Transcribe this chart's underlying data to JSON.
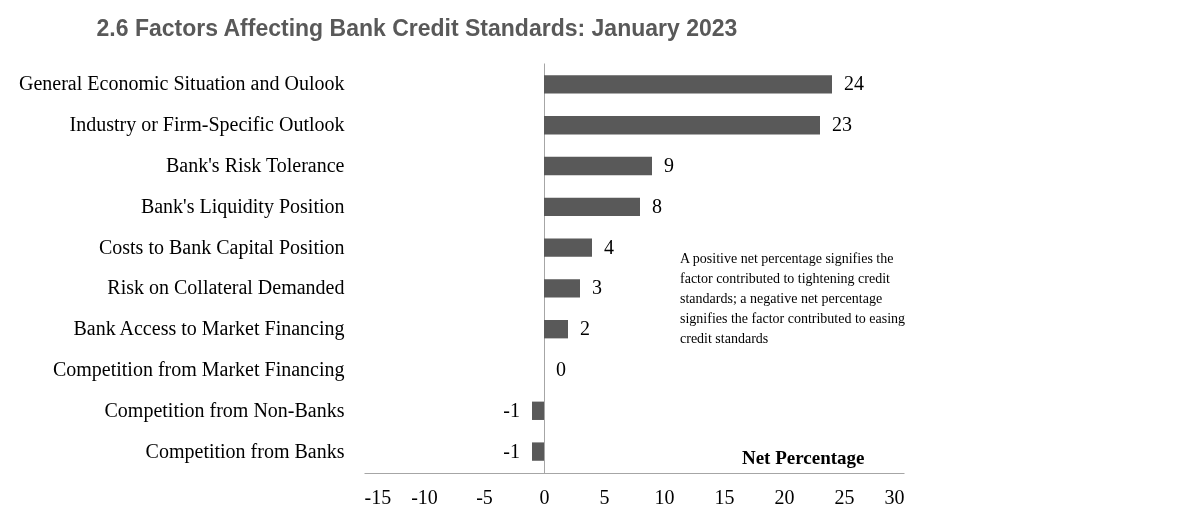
{
  "chart_data": {
    "type": "bar",
    "orientation": "horizontal",
    "title": "2.6 Factors Affecting Bank Credit Standards: January 2023",
    "categories": [
      "General Economic Situation and Oulook",
      "Industry or Firm-Specific Outlook",
      "Bank's Risk Tolerance",
      "Bank's Liquidity Position",
      "Costs to Bank Capital Position",
      "Risk on Collateral Demanded",
      "Bank Access to Market Financing",
      "Competition from Market Financing",
      "Competition from Non-Banks",
      "Competition from Banks"
    ],
    "values": [
      24,
      23,
      9,
      8,
      4,
      3,
      2,
      0,
      -1,
      -1
    ],
    "color": "#595959",
    "xlabel": "Net Percentage",
    "xlim": [
      -15,
      30
    ],
    "xticks": [
      -15,
      -10,
      -5,
      0,
      5,
      10,
      15,
      20,
      25,
      30
    ],
    "data_labels": true,
    "annotations": [
      "A positive net percentage signifies the factor contributed to tightening credit standards; a negative net percentage signifies the factor contributed to easing credit standards"
    ]
  }
}
